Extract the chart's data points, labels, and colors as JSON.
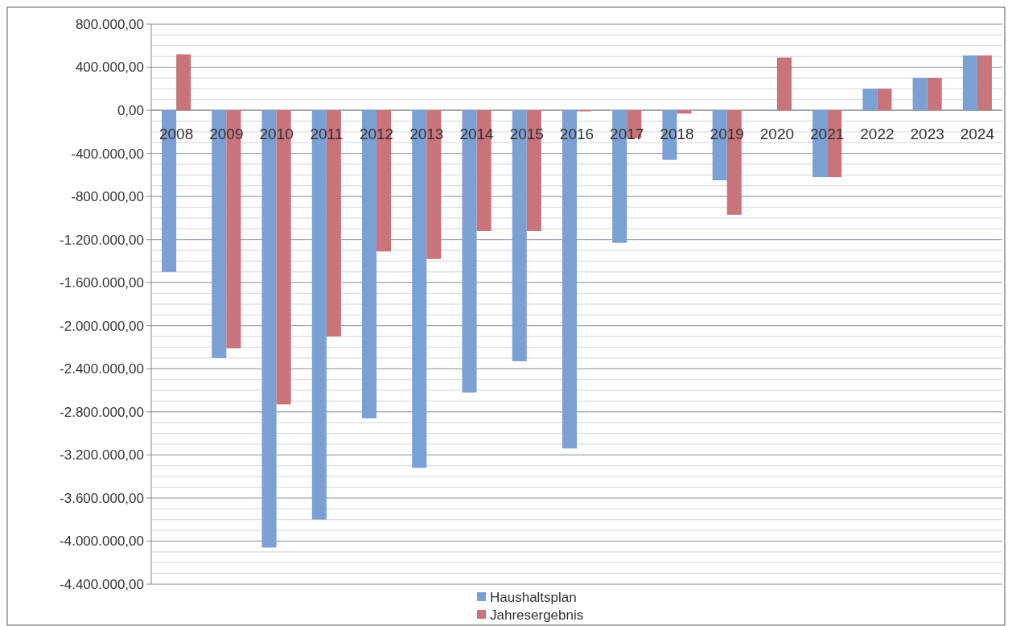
{
  "chart_data": {
    "type": "bar",
    "categories": [
      "2008",
      "2009",
      "2010",
      "2011",
      "2012",
      "2013",
      "2014",
      "2015",
      "2016",
      "2017",
      "2018",
      "2019",
      "2020",
      "2021",
      "2022",
      "2023",
      "2024"
    ],
    "series": [
      {
        "name": "Haushaltsplan",
        "color": "#7ba0d4",
        "values": [
          -1500000,
          -2300000,
          -4060000,
          -3800000,
          -2860000,
          -3320000,
          -2620000,
          -2330000,
          -3140000,
          -1230000,
          -460000,
          -650000,
          0,
          -620000,
          200000,
          300000,
          510000
        ]
      },
      {
        "name": "Jahresergebnis",
        "color": "#c9737a",
        "values": [
          520000,
          -2210000,
          -2730000,
          -2100000,
          -1310000,
          -1380000,
          -1120000,
          -1120000,
          -10000,
          -260000,
          -30000,
          -970000,
          490000,
          -620000,
          200000,
          300000,
          510000
        ]
      }
    ],
    "ylim": [
      -4400000,
      800000
    ],
    "yticks": [
      {
        "value": 800000,
        "label": "800.000,00"
      },
      {
        "value": 700000,
        "label": null
      },
      {
        "value": 600000,
        "label": null
      },
      {
        "value": 500000,
        "label": null
      },
      {
        "value": 400000,
        "label": "400.000,00"
      },
      {
        "value": 300000,
        "label": null
      },
      {
        "value": 200000,
        "label": null
      },
      {
        "value": 100000,
        "label": null
      },
      {
        "value": 0,
        "label": "0,00"
      },
      {
        "value": -100000,
        "label": null
      },
      {
        "value": -200000,
        "label": null
      },
      {
        "value": -300000,
        "label": null
      },
      {
        "value": -400000,
        "label": "-400.000,00"
      },
      {
        "value": -500000,
        "label": null
      },
      {
        "value": -600000,
        "label": null
      },
      {
        "value": -700000,
        "label": null
      },
      {
        "value": -800000,
        "label": "-800.000,00"
      },
      {
        "value": -900000,
        "label": null
      },
      {
        "value": -1000000,
        "label": null
      },
      {
        "value": -1100000,
        "label": null
      },
      {
        "value": -1200000,
        "label": "-1.200.000,00"
      },
      {
        "value": -1300000,
        "label": null
      },
      {
        "value": -1400000,
        "label": null
      },
      {
        "value": -1500000,
        "label": null
      },
      {
        "value": -1600000,
        "label": "-1.600.000,00"
      },
      {
        "value": -1700000,
        "label": null
      },
      {
        "value": -1800000,
        "label": null
      },
      {
        "value": -1900000,
        "label": null
      },
      {
        "value": -2000000,
        "label": "-2.000.000,00"
      },
      {
        "value": -2100000,
        "label": null
      },
      {
        "value": -2200000,
        "label": null
      },
      {
        "value": -2300000,
        "label": null
      },
      {
        "value": -2400000,
        "label": "-2.400.000,00"
      },
      {
        "value": -2500000,
        "label": null
      },
      {
        "value": -2600000,
        "label": null
      },
      {
        "value": -2700000,
        "label": null
      },
      {
        "value": -2800000,
        "label": "-2.800.000,00"
      },
      {
        "value": -2900000,
        "label": null
      },
      {
        "value": -3000000,
        "label": null
      },
      {
        "value": -3100000,
        "label": null
      },
      {
        "value": -3200000,
        "label": "-3.200.000,00"
      },
      {
        "value": -3300000,
        "label": null
      },
      {
        "value": -3400000,
        "label": null
      },
      {
        "value": -3500000,
        "label": null
      },
      {
        "value": -3600000,
        "label": "-3.600.000,00"
      },
      {
        "value": -3700000,
        "label": null
      },
      {
        "value": -3800000,
        "label": null
      },
      {
        "value": -3900000,
        "label": null
      },
      {
        "value": -4000000,
        "label": "-4.000.000,00"
      },
      {
        "value": -4100000,
        "label": null
      },
      {
        "value": -4200000,
        "label": null
      },
      {
        "value": -4300000,
        "label": null
      },
      {
        "value": -4400000,
        "label": "-4.400.000,00"
      }
    ],
    "grid": "y",
    "legend": "bottom"
  }
}
